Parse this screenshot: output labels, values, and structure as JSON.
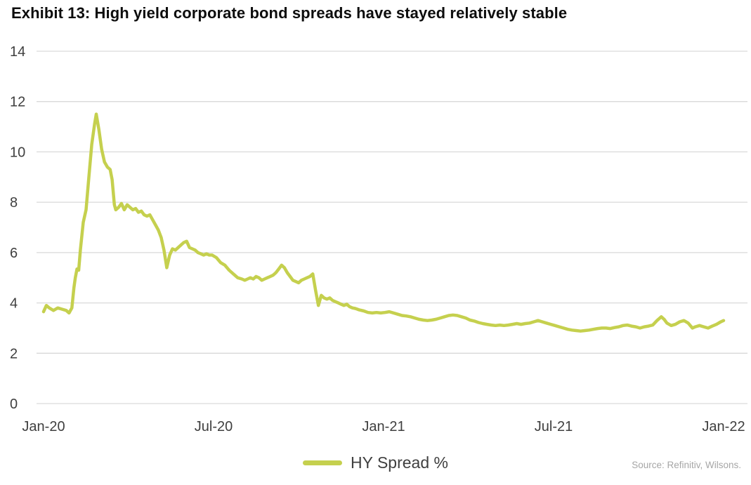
{
  "title": "Exhibit 13: High yield corporate bond spreads have stayed relatively stable",
  "legend": {
    "label": "HY Spread %"
  },
  "source": "Source: Refinitiv, Wilsons.",
  "colors": {
    "line": "#c5d04e",
    "grid": "#d9d9d9",
    "tick_text": "#3f3f3f",
    "title_text": "#0d0d0d",
    "source_text": "#a6a6a6",
    "background": "#ffffff"
  },
  "chart_data": {
    "type": "line",
    "title": "Exhibit 13: High yield corporate bond spreads have stayed relatively stable",
    "xlabel": "",
    "ylabel": "",
    "x_unit": "months since Jan-2020",
    "y_unit": "percent",
    "x_range": [
      0,
      24
    ],
    "y_range": [
      0,
      14
    ],
    "yticks": [
      0,
      2,
      4,
      6,
      8,
      10,
      12,
      14
    ],
    "xticks": [
      {
        "pos": 0,
        "label": "Jan-20"
      },
      {
        "pos": 6,
        "label": "Jul-20"
      },
      {
        "pos": 12,
        "label": "Jan-21"
      },
      {
        "pos": 18,
        "label": "Jul-21"
      },
      {
        "pos": 24,
        "label": "Jan-22"
      }
    ],
    "grid": "horizontal",
    "legend_position": "bottom-center",
    "series": [
      {
        "name": "HY Spread %",
        "points": [
          [
            0,
            3.65
          ],
          [
            0.1,
            3.9
          ],
          [
            0.2,
            3.8
          ],
          [
            0.35,
            3.7
          ],
          [
            0.5,
            3.8
          ],
          [
            0.65,
            3.75
          ],
          [
            0.8,
            3.7
          ],
          [
            0.9,
            3.6
          ],
          [
            1.0,
            3.8
          ],
          [
            1.07,
            4.6
          ],
          [
            1.12,
            5.0
          ],
          [
            1.18,
            5.35
          ],
          [
            1.24,
            5.3
          ],
          [
            1.3,
            6.1
          ],
          [
            1.4,
            7.2
          ],
          [
            1.5,
            7.7
          ],
          [
            1.6,
            9.0
          ],
          [
            1.7,
            10.3
          ],
          [
            1.8,
            11.1
          ],
          [
            1.86,
            11.5
          ],
          [
            1.95,
            10.9
          ],
          [
            2.05,
            10.1
          ],
          [
            2.15,
            9.6
          ],
          [
            2.25,
            9.4
          ],
          [
            2.35,
            9.3
          ],
          [
            2.42,
            8.9
          ],
          [
            2.5,
            7.9
          ],
          [
            2.55,
            7.7
          ],
          [
            2.65,
            7.8
          ],
          [
            2.75,
            7.95
          ],
          [
            2.85,
            7.7
          ],
          [
            2.95,
            7.9
          ],
          [
            3.05,
            7.8
          ],
          [
            3.15,
            7.7
          ],
          [
            3.25,
            7.75
          ],
          [
            3.35,
            7.6
          ],
          [
            3.45,
            7.65
          ],
          [
            3.55,
            7.5
          ],
          [
            3.65,
            7.45
          ],
          [
            3.75,
            7.5
          ],
          [
            3.85,
            7.3
          ],
          [
            3.95,
            7.1
          ],
          [
            4.05,
            6.9
          ],
          [
            4.15,
            6.6
          ],
          [
            4.25,
            6.1
          ],
          [
            4.35,
            5.4
          ],
          [
            4.45,
            5.9
          ],
          [
            4.55,
            6.15
          ],
          [
            4.65,
            6.1
          ],
          [
            4.75,
            6.2
          ],
          [
            4.85,
            6.3
          ],
          [
            4.95,
            6.4
          ],
          [
            5.05,
            6.45
          ],
          [
            5.15,
            6.2
          ],
          [
            5.25,
            6.15
          ],
          [
            5.35,
            6.1
          ],
          [
            5.45,
            6.0
          ],
          [
            5.55,
            5.95
          ],
          [
            5.65,
            5.9
          ],
          [
            5.75,
            5.95
          ],
          [
            5.85,
            5.9
          ],
          [
            5.95,
            5.9
          ],
          [
            6.1,
            5.8
          ],
          [
            6.25,
            5.6
          ],
          [
            6.4,
            5.5
          ],
          [
            6.55,
            5.3
          ],
          [
            6.7,
            5.15
          ],
          [
            6.85,
            5.0
          ],
          [
            7.0,
            4.95
          ],
          [
            7.1,
            4.9
          ],
          [
            7.2,
            4.95
          ],
          [
            7.3,
            5.0
          ],
          [
            7.4,
            4.95
          ],
          [
            7.5,
            5.05
          ],
          [
            7.6,
            5.0
          ],
          [
            7.7,
            4.9
          ],
          [
            7.8,
            4.95
          ],
          [
            7.9,
            5.0
          ],
          [
            8.0,
            5.05
          ],
          [
            8.1,
            5.1
          ],
          [
            8.2,
            5.2
          ],
          [
            8.3,
            5.35
          ],
          [
            8.4,
            5.5
          ],
          [
            8.5,
            5.4
          ],
          [
            8.6,
            5.2
          ],
          [
            8.7,
            5.05
          ],
          [
            8.8,
            4.9
          ],
          [
            8.9,
            4.85
          ],
          [
            9.0,
            4.8
          ],
          [
            9.1,
            4.9
          ],
          [
            9.2,
            4.95
          ],
          [
            9.3,
            5.0
          ],
          [
            9.4,
            5.05
          ],
          [
            9.5,
            5.15
          ],
          [
            9.6,
            4.5
          ],
          [
            9.7,
            3.9
          ],
          [
            9.8,
            4.3
          ],
          [
            9.9,
            4.2
          ],
          [
            10.0,
            4.15
          ],
          [
            10.1,
            4.2
          ],
          [
            10.2,
            4.1
          ],
          [
            10.3,
            4.05
          ],
          [
            10.4,
            4.0
          ],
          [
            10.5,
            3.95
          ],
          [
            10.6,
            3.9
          ],
          [
            10.7,
            3.95
          ],
          [
            10.8,
            3.85
          ],
          [
            10.9,
            3.8
          ],
          [
            11.0,
            3.78
          ],
          [
            11.15,
            3.72
          ],
          [
            11.3,
            3.68
          ],
          [
            11.45,
            3.62
          ],
          [
            11.6,
            3.6
          ],
          [
            11.75,
            3.62
          ],
          [
            11.9,
            3.6
          ],
          [
            12.05,
            3.62
          ],
          [
            12.2,
            3.65
          ],
          [
            12.35,
            3.6
          ],
          [
            12.5,
            3.55
          ],
          [
            12.65,
            3.5
          ],
          [
            12.8,
            3.48
          ],
          [
            12.95,
            3.45
          ],
          [
            13.1,
            3.4
          ],
          [
            13.25,
            3.35
          ],
          [
            13.4,
            3.32
          ],
          [
            13.55,
            3.3
          ],
          [
            13.7,
            3.32
          ],
          [
            13.85,
            3.35
          ],
          [
            14.0,
            3.4
          ],
          [
            14.15,
            3.45
          ],
          [
            14.3,
            3.5
          ],
          [
            14.45,
            3.52
          ],
          [
            14.6,
            3.5
          ],
          [
            14.75,
            3.45
          ],
          [
            14.9,
            3.4
          ],
          [
            15.05,
            3.32
          ],
          [
            15.2,
            3.28
          ],
          [
            15.35,
            3.22
          ],
          [
            15.5,
            3.18
          ],
          [
            15.65,
            3.15
          ],
          [
            15.8,
            3.12
          ],
          [
            15.95,
            3.1
          ],
          [
            16.1,
            3.12
          ],
          [
            16.25,
            3.1
          ],
          [
            16.4,
            3.12
          ],
          [
            16.55,
            3.15
          ],
          [
            16.7,
            3.18
          ],
          [
            16.85,
            3.15
          ],
          [
            17.0,
            3.18
          ],
          [
            17.15,
            3.2
          ],
          [
            17.3,
            3.25
          ],
          [
            17.45,
            3.3
          ],
          [
            17.6,
            3.25
          ],
          [
            17.75,
            3.2
          ],
          [
            17.9,
            3.15
          ],
          [
            18.05,
            3.1
          ],
          [
            18.2,
            3.05
          ],
          [
            18.35,
            3.0
          ],
          [
            18.5,
            2.95
          ],
          [
            18.65,
            2.92
          ],
          [
            18.8,
            2.9
          ],
          [
            18.95,
            2.88
          ],
          [
            19.1,
            2.9
          ],
          [
            19.25,
            2.92
          ],
          [
            19.4,
            2.95
          ],
          [
            19.55,
            2.98
          ],
          [
            19.7,
            3.0
          ],
          [
            19.85,
            3.0
          ],
          [
            20.0,
            2.98
          ],
          [
            20.15,
            3.02
          ],
          [
            20.3,
            3.05
          ],
          [
            20.45,
            3.1
          ],
          [
            20.6,
            3.12
          ],
          [
            20.75,
            3.08
          ],
          [
            20.9,
            3.05
          ],
          [
            21.05,
            3.0
          ],
          [
            21.2,
            3.05
          ],
          [
            21.35,
            3.08
          ],
          [
            21.5,
            3.12
          ],
          [
            21.65,
            3.3
          ],
          [
            21.8,
            3.45
          ],
          [
            21.9,
            3.35
          ],
          [
            22.0,
            3.2
          ],
          [
            22.15,
            3.1
          ],
          [
            22.3,
            3.15
          ],
          [
            22.45,
            3.25
          ],
          [
            22.6,
            3.3
          ],
          [
            22.75,
            3.2
          ],
          [
            22.9,
            3.0
          ],
          [
            23.0,
            3.05
          ],
          [
            23.15,
            3.1
          ],
          [
            23.3,
            3.05
          ],
          [
            23.45,
            3.0
          ],
          [
            23.6,
            3.08
          ],
          [
            23.75,
            3.15
          ],
          [
            23.9,
            3.25
          ],
          [
            24.0,
            3.3
          ]
        ]
      }
    ]
  }
}
